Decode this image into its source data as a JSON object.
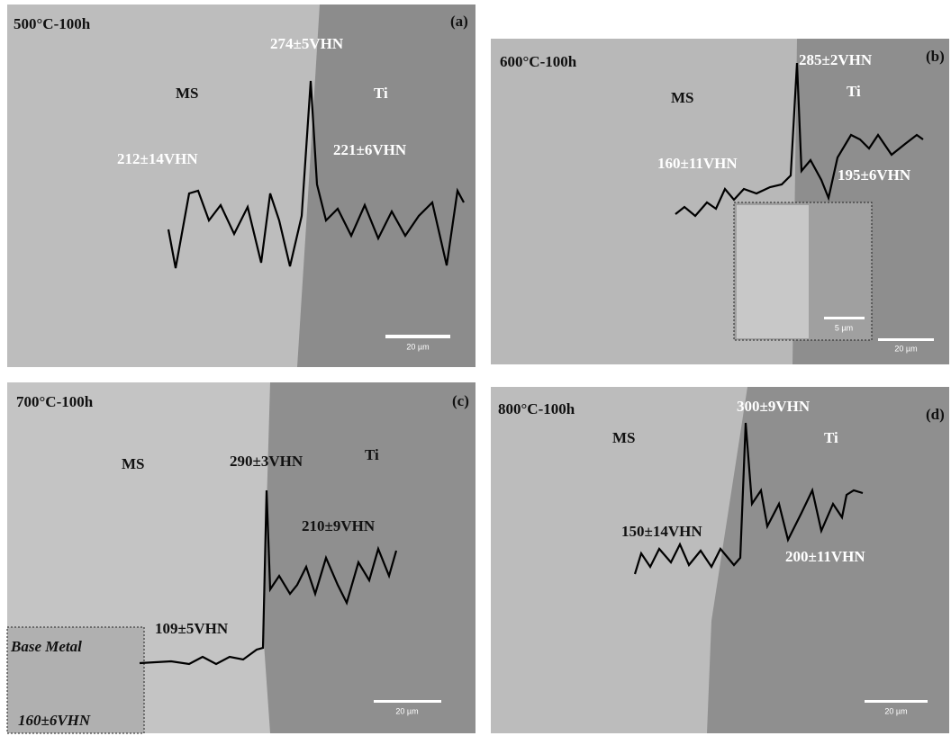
{
  "panels": [
    {
      "condition": "500°C-100h",
      "label": "(a)",
      "ms": "MS",
      "ti": "Ti",
      "interface_hardness": "274±5VHN",
      "ms_hardness": "212±14VHN",
      "ti_hardness": "221±6VHN",
      "scale_bar": "20 µm"
    },
    {
      "condition": "600°C-100h",
      "label": "(b)",
      "ms": "MS",
      "ti": "Ti",
      "interface_hardness": "285±2VHN",
      "ms_hardness": "160±11VHN",
      "ti_hardness": "195±6VHN",
      "scale_bar": "20 µm",
      "inset_scale_bar": "5 µm"
    },
    {
      "condition": "700°C-100h",
      "label": "(c)",
      "ms": "MS",
      "ti": "Ti",
      "interface_hardness": "290±3VHN",
      "ms_hardness": "109±5VHN",
      "ti_hardness": "210±9VHN",
      "scale_bar": "20 µm",
      "base_metal": "Base Metal",
      "base_metal_hardness": "160±6VHN"
    },
    {
      "condition": "800°C-100h",
      "label": "(d)",
      "ms": "MS",
      "ti": "Ti",
      "interface_hardness": "300±9VHN",
      "ms_hardness": "150±14VHN",
      "ti_hardness": "200±11VHN",
      "scale_bar": "20 µm"
    }
  ]
}
